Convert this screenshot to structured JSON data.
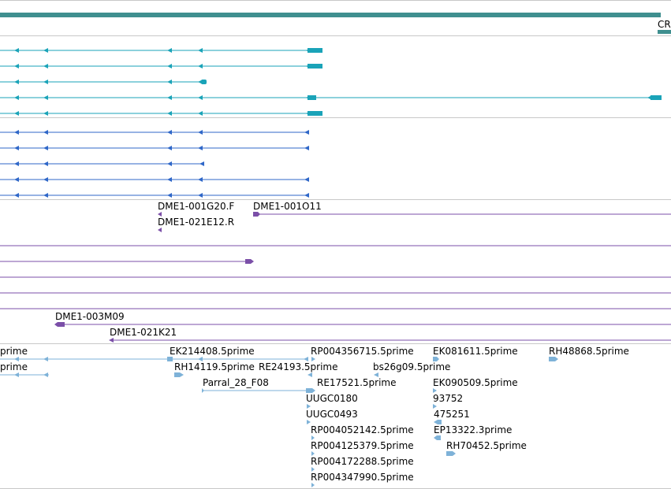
{
  "colors": {
    "reference": "#3f8f8f",
    "divider": "#c8c8c8",
    "gene_models": "#1aa3b8",
    "gene_models_alt": "#2f67c8",
    "clones": "#7b4fa8",
    "ests": "#7eb2d8"
  },
  "reference_label": "CR",
  "icons": {
    "strand_minus": "left-arrow-glyph",
    "strand_plus": "right-arrow-glyph"
  },
  "clone_labels": [
    "DME1-001G20.F",
    "DME1-001O11",
    "DME1-021E12.R",
    "DME1-003M09",
    "DME1-021K21"
  ],
  "est_labels": [
    "prime",
    "EK214408.5prime",
    "RP004356715.5prime",
    "EK081611.5prime",
    "RH48868.5prime",
    "prime",
    "RH14119.5prime",
    "RE24193.5prime",
    "bs26g09.5prime",
    "Parral_28_F08",
    "RE17521.5prime",
    "EK090509.5prime",
    "UUGC0180",
    "93752",
    "UUGC0493",
    "475251",
    "RP004052142.5prime",
    "EP13322.3prime",
    "RP004125379.5prime",
    "RH70452.5prime",
    "RP004172288.5prime",
    "RP004347990.5prime"
  ]
}
